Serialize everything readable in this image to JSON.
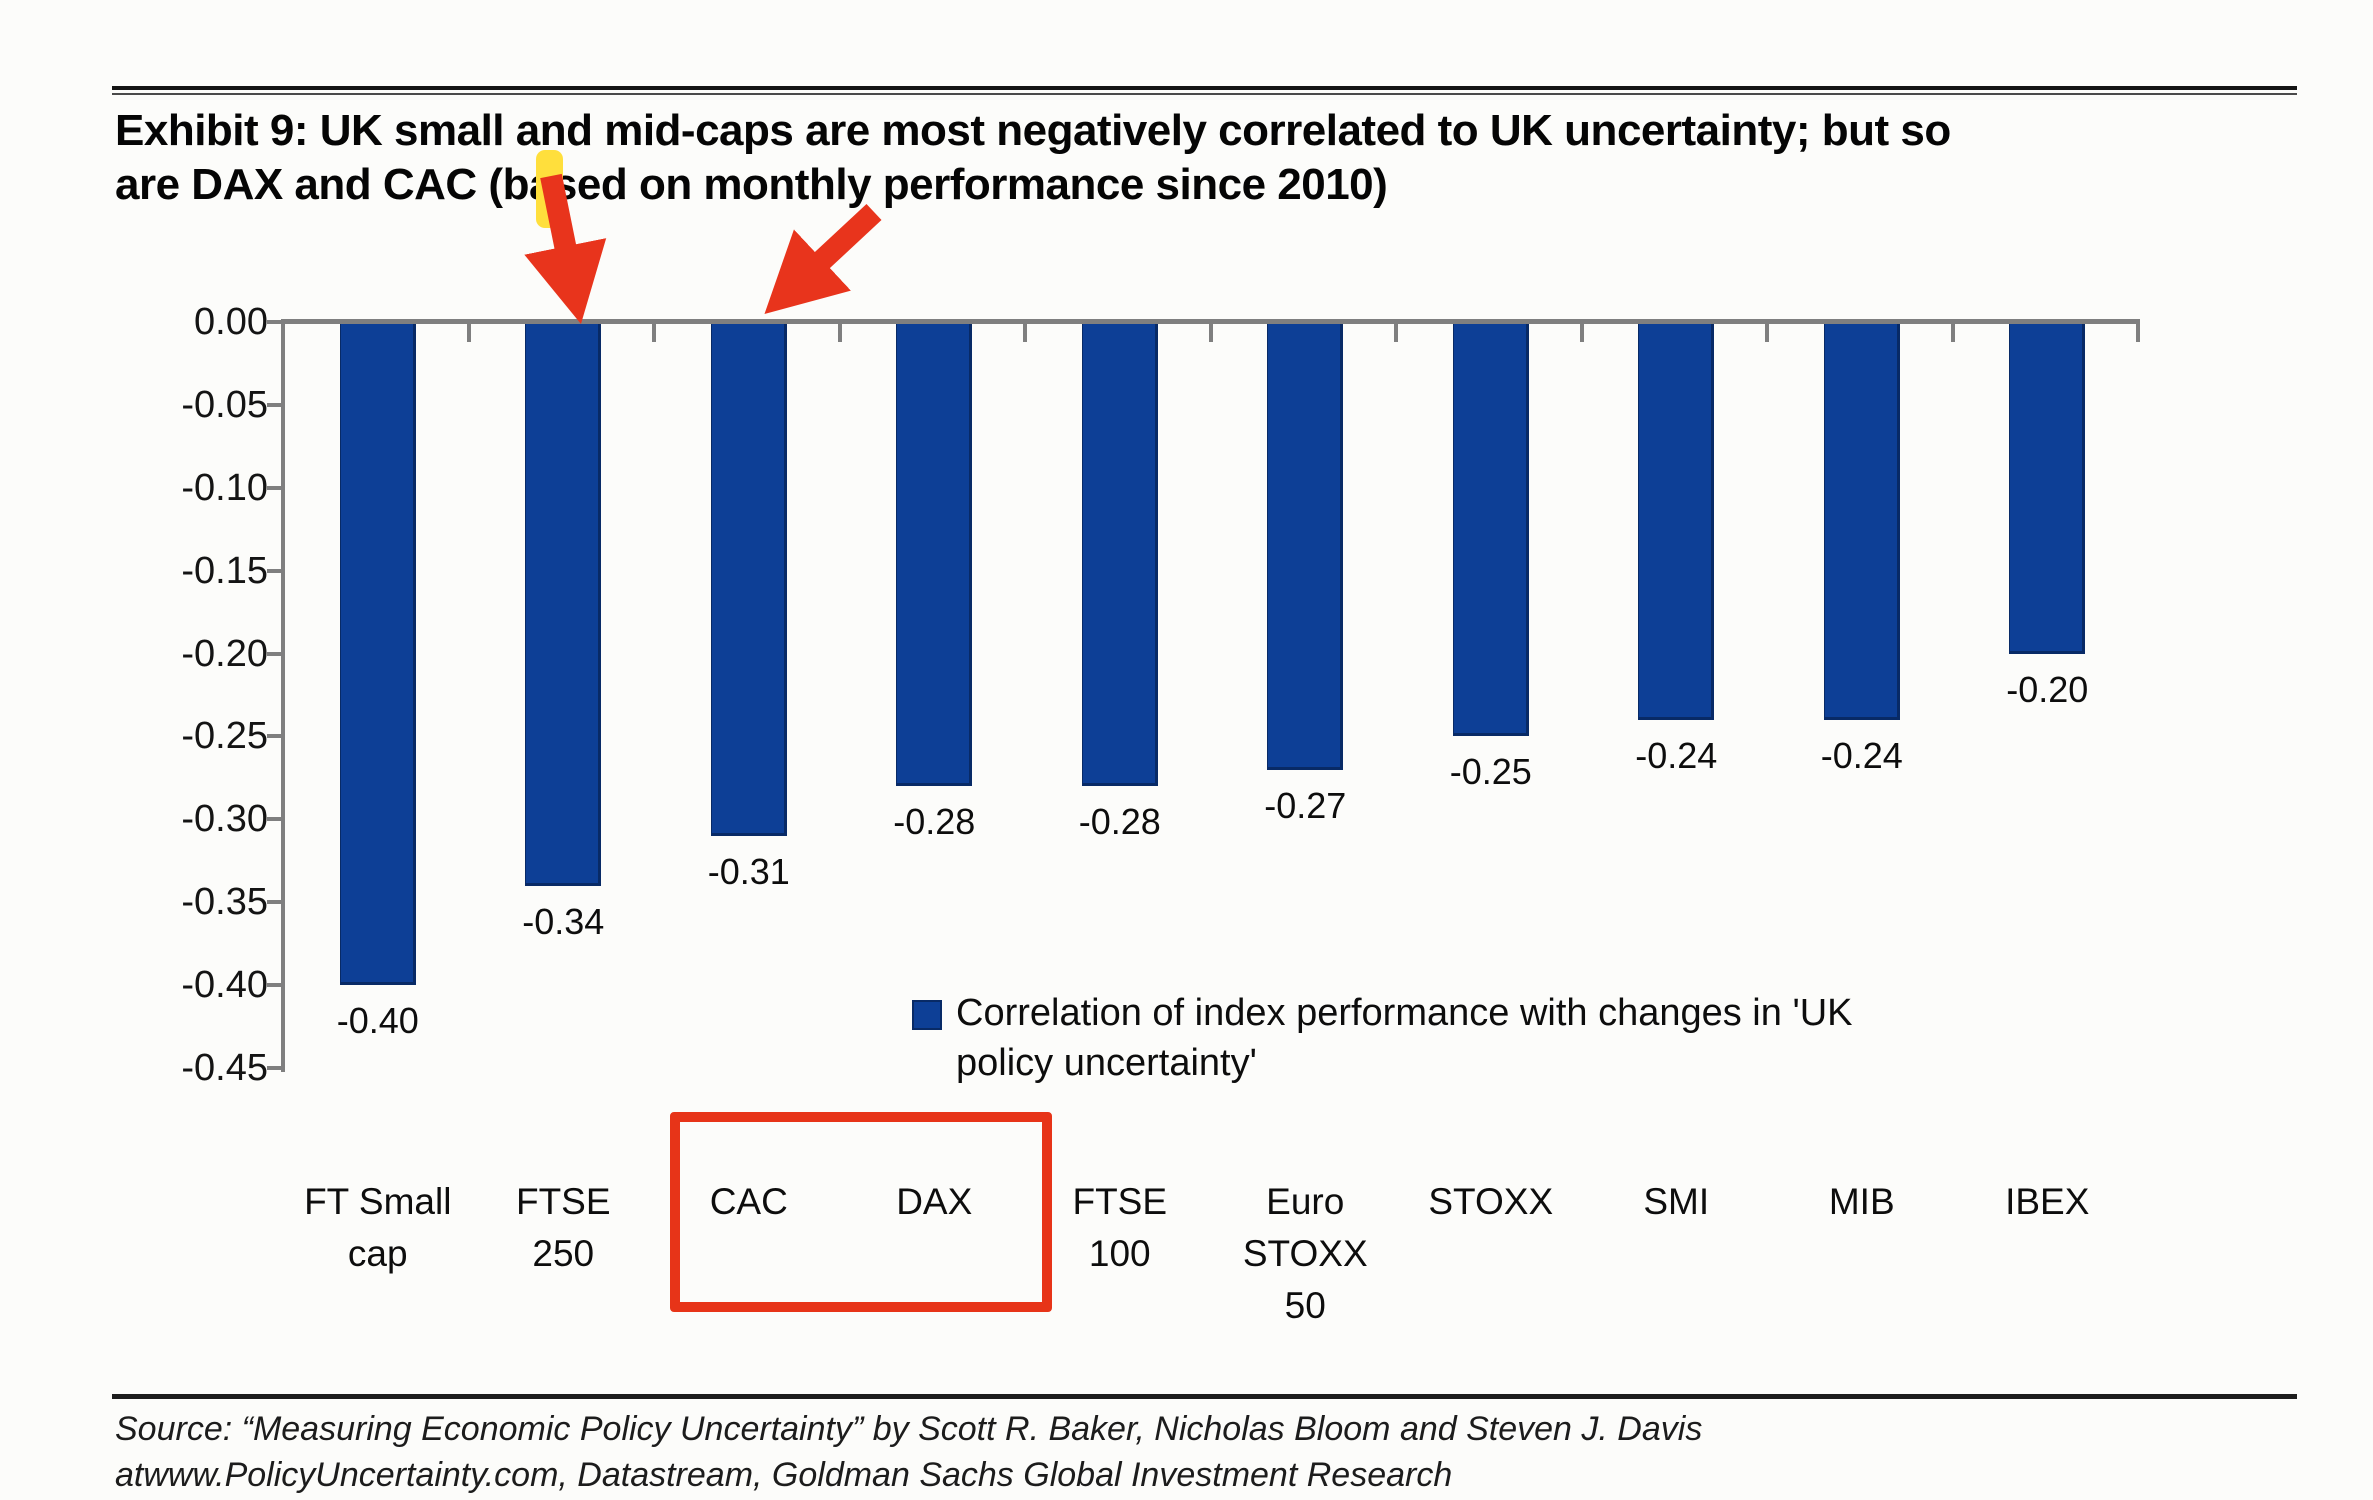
{
  "page": {
    "background": "#fcfcfa"
  },
  "header": {
    "title_line1": "Exhibit 9: UK small and mid-caps are most negatively correlated to UK uncertainty; but so",
    "title_line2": "are DAX and CAC (based on monthly performance since 2010)"
  },
  "chart_data": {
    "type": "bar",
    "title": "",
    "categories": [
      "FT Small cap",
      "FTSE 250",
      "CAC",
      "DAX",
      "FTSE 100",
      "Euro STOXX 50",
      "STOXX",
      "SMI",
      "MIB",
      "IBEX"
    ],
    "category_label_lines": [
      [
        "FT Small",
        "cap"
      ],
      [
        "FTSE",
        "250"
      ],
      [
        "CAC"
      ],
      [
        "DAX"
      ],
      [
        "FTSE",
        "100"
      ],
      [
        "Euro",
        "STOXX",
        "50"
      ],
      [
        "STOXX"
      ],
      [
        "SMI"
      ],
      [
        "MIB"
      ],
      [
        "IBEX"
      ]
    ],
    "values": [
      -0.4,
      -0.34,
      -0.31,
      -0.28,
      -0.28,
      -0.27,
      -0.25,
      -0.24,
      -0.24,
      -0.2
    ],
    "data_labels": [
      "-0.40",
      "-0.34",
      "-0.31",
      "-0.28",
      "-0.28",
      "-0.27",
      "-0.25",
      "-0.24",
      "-0.24",
      "-0.20"
    ],
    "y_tick_labels": [
      "0.00",
      "-0.05",
      "-0.10",
      "-0.15",
      "-0.20",
      "-0.25",
      "-0.30",
      "-0.35",
      "-0.40",
      "-0.45"
    ],
    "ylim": [
      0,
      -0.45
    ],
    "grid": "off",
    "legend_position": "inside-lower-middle",
    "legend_label": "Correlation of index performance with changes in 'UK policy uncertainty'",
    "legend_label_lines": [
      "Correlation of index performance with changes in 'UK",
      "policy uncertainty'"
    ],
    "bar_color": "#0d3f96",
    "bar_edge_color": "#082a66",
    "axis_color": "#7f7f7f",
    "label_color": "#0d0d0d"
  },
  "annotations": {
    "arrow_color": "#e8341c",
    "title_highlight_color": "#ffdf3c",
    "box_border_color": "#e73418"
  },
  "footer": {
    "source_line1": "Source: “Measuring Economic Policy Uncertainty” by Scott R. Baker, Nicholas Bloom and Steven J. Davis",
    "source_line2": "atwww.PolicyUncertainty.com, Datastream, Goldman Sachs Global Investment Research"
  }
}
